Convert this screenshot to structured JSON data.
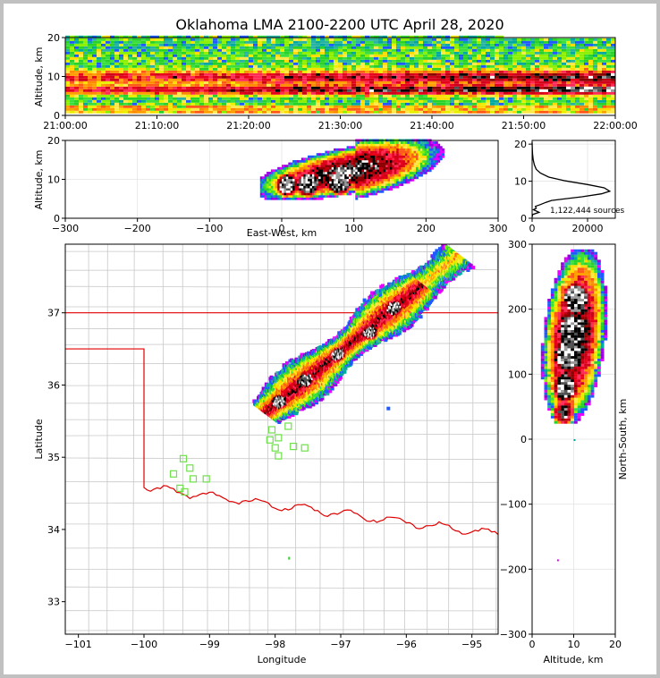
{
  "title": "Oklahoma LMA 2100-2200 UTC April 28, 2020",
  "colors": {
    "state_border": "#e00000",
    "county_lines": "#c8c8c8",
    "stations": "#6ee04a",
    "frame": "#c0c0c0"
  },
  "chart_data": [
    {
      "panel": "time-height",
      "type": "heatmap",
      "xlabel": "",
      "ylabel": "Altitude, km",
      "xticks": [
        "21:00:00",
        "21:10:00",
        "21:20:00",
        "21:30:00",
        "21:40:00",
        "21:50:00",
        "22:00:00"
      ],
      "yticks": [
        0,
        10,
        20
      ],
      "ylim": [
        0,
        20
      ]
    },
    {
      "panel": "east-west-altitude",
      "type": "heatmap",
      "xlabel": "East-West, km",
      "ylabel": "Altitude, km",
      "xlim": [
        -300,
        300
      ],
      "ylim": [
        0,
        20
      ],
      "xticks": [
        -300,
        -200,
        -100,
        0,
        100,
        200,
        300
      ],
      "yticks": [
        0,
        10,
        20
      ],
      "cores_km": [
        {
          "x": 5,
          "z": 8
        },
        {
          "x": 35,
          "z": 8
        },
        {
          "x": 80,
          "z": 8
        }
      ]
    },
    {
      "panel": "altitude-histogram",
      "type": "line",
      "xlim": [
        0,
        30000
      ],
      "ylim": [
        0,
        21
      ],
      "xticks": [
        0,
        20000
      ],
      "yticks": [
        0,
        10,
        20
      ],
      "annotation": "1,122,444 sources",
      "profile": [
        [
          0,
          0.3
        ],
        [
          150,
          1
        ],
        [
          2500,
          1.6
        ],
        [
          500,
          2.3
        ],
        [
          1500,
          2.7
        ],
        [
          1200,
          3.2
        ],
        [
          3000,
          3.7
        ],
        [
          5000,
          4.3
        ],
        [
          7000,
          4.8
        ],
        [
          18000,
          5.8
        ],
        [
          25000,
          6.6
        ],
        [
          28000,
          7.3
        ],
        [
          26000,
          8.2
        ],
        [
          20000,
          9.1
        ],
        [
          12000,
          10.1
        ],
        [
          6000,
          11.1
        ],
        [
          3000,
          12.2
        ],
        [
          1500,
          13.2
        ],
        [
          800,
          14.4
        ],
        [
          400,
          15.8
        ],
        [
          150,
          17.3
        ],
        [
          60,
          18.7
        ],
        [
          0,
          20.5
        ]
      ]
    },
    {
      "panel": "plan-view",
      "type": "heatmap",
      "xlabel": "Longitude",
      "ylabel": "Latitude",
      "xlim": [
        -101.2,
        -94.6
      ],
      "ylim": [
        32.55,
        37.95
      ],
      "xticks": [
        -101,
        -100,
        -99,
        -98,
        -97,
        -96,
        -95
      ],
      "yticks": [
        33,
        34,
        35,
        36,
        37
      ],
      "cores": [
        {
          "lon": -97.95,
          "lat": 35.8
        },
        {
          "lon": -97.55,
          "lat": 36.1
        },
        {
          "lon": -97.05,
          "lat": 36.45
        },
        {
          "lon": -96.55,
          "lat": 36.75
        },
        {
          "lon": -96.2,
          "lat": 37.1
        }
      ],
      "stations": [
        {
          "lon": -99.4,
          "lat": 34.98
        },
        {
          "lon": -99.3,
          "lat": 34.85
        },
        {
          "lon": -99.55,
          "lat": 34.77
        },
        {
          "lon": -99.25,
          "lat": 34.7
        },
        {
          "lon": -99.05,
          "lat": 34.7
        },
        {
          "lon": -99.45,
          "lat": 34.57
        },
        {
          "lon": -99.38,
          "lat": 34.52
        },
        {
          "lon": -98.05,
          "lat": 35.38
        },
        {
          "lon": -98.08,
          "lat": 35.24
        },
        {
          "lon": -97.95,
          "lat": 35.27
        },
        {
          "lon": -97.8,
          "lat": 35.43
        },
        {
          "lon": -98.0,
          "lat": 35.13
        },
        {
          "lon": -97.95,
          "lat": 35.02
        },
        {
          "lon": -97.72,
          "lat": 35.15
        },
        {
          "lon": -97.55,
          "lat": 35.13
        }
      ]
    },
    {
      "panel": "altitude-north-south",
      "type": "heatmap",
      "xlabel": "Altitude, km",
      "ylabel": "North-South, km",
      "xlim": [
        0,
        20
      ],
      "ylim": [
        -300,
        300
      ],
      "xticks": [
        0,
        10,
        20
      ],
      "yticks": [
        -300,
        -200,
        -100,
        0,
        100,
        200,
        300
      ]
    }
  ]
}
